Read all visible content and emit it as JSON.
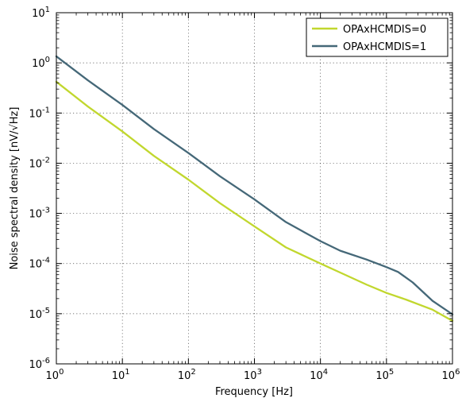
{
  "chart_data": {
    "type": "line",
    "title": "",
    "xlabel": "Frequency [Hz]",
    "ylabel": "Noise spectral density [nV/√Hz]",
    "xscale": "log",
    "yscale": "log",
    "xlim": [
      1,
      1000000
    ],
    "ylim": [
      1e-06,
      10
    ],
    "grid": true,
    "legend_position": "top-right",
    "x_ticks": [
      {
        "value": 1,
        "mantissa": "10",
        "exp": "0"
      },
      {
        "value": 10,
        "mantissa": "10",
        "exp": "1"
      },
      {
        "value": 100,
        "mantissa": "10",
        "exp": "2"
      },
      {
        "value": 1000,
        "mantissa": "10",
        "exp": "3"
      },
      {
        "value": 10000,
        "mantissa": "10",
        "exp": "4"
      },
      {
        "value": 100000,
        "mantissa": "10",
        "exp": "5"
      },
      {
        "value": 1000000,
        "mantissa": "10",
        "exp": "6"
      }
    ],
    "y_ticks": [
      {
        "value": 1e-06,
        "mantissa": "10",
        "exp": "-6"
      },
      {
        "value": 1e-05,
        "mantissa": "10",
        "exp": "-5"
      },
      {
        "value": 0.0001,
        "mantissa": "10",
        "exp": "-4"
      },
      {
        "value": 0.001,
        "mantissa": "10",
        "exp": "-3"
      },
      {
        "value": 0.01,
        "mantissa": "10",
        "exp": "-2"
      },
      {
        "value": 0.1,
        "mantissa": "10",
        "exp": "-1"
      },
      {
        "value": 1,
        "mantissa": "10",
        "exp": "0"
      },
      {
        "value": 10,
        "mantissa": "10",
        "exp": "1"
      }
    ],
    "series": [
      {
        "name": "OPAxHCMDIS=0",
        "color": "#c1d72e",
        "x": [
          1,
          3,
          10,
          30,
          100,
          300,
          1000,
          3000,
          10000,
          20000,
          50000,
          100000,
          200000,
          500000,
          1000000
        ],
        "y": [
          0.42,
          0.135,
          0.043,
          0.014,
          0.0047,
          0.0016,
          0.00055,
          0.00021,
          0.0001,
          6.6e-05,
          3.8e-05,
          2.6e-05,
          1.9e-05,
          1.2e-05,
          7.2e-06
        ]
      },
      {
        "name": "OPAxHCMDIS=1",
        "color": "#456878",
        "x": [
          1,
          3,
          10,
          30,
          100,
          300,
          1000,
          3000,
          10000,
          20000,
          50000,
          100000,
          150000,
          250000,
          500000,
          1000000
        ],
        "y": [
          1.35,
          0.45,
          0.145,
          0.048,
          0.016,
          0.0055,
          0.0019,
          0.00067,
          0.00028,
          0.00018,
          0.00012,
          8.5e-05,
          6.8e-05,
          4.2e-05,
          1.8e-05,
          9.7e-06
        ]
      }
    ]
  }
}
